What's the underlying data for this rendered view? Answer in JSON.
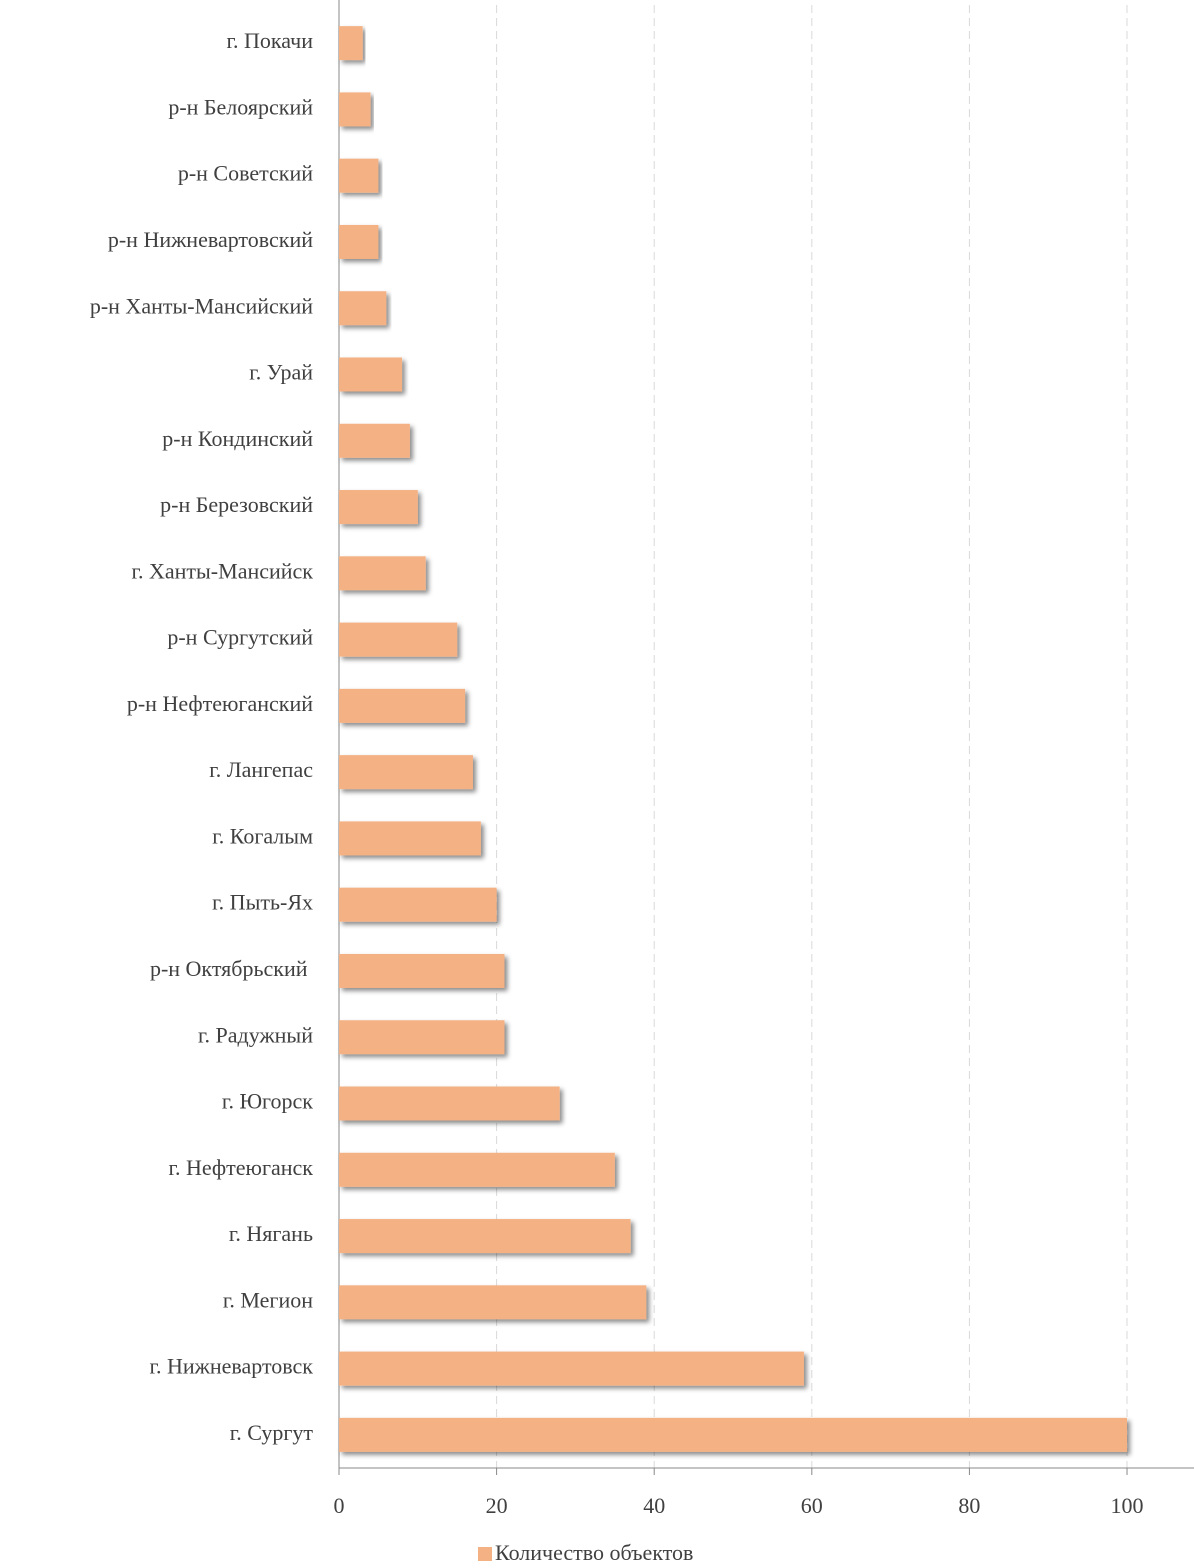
{
  "chart_data": {
    "type": "barh",
    "categories": [
      "г. Покачи",
      "р-н Белоярский",
      "р-н Советский",
      "р-н Нижневартовский",
      "р-н Ханты-Мансийский",
      "г. Урай",
      "р-н Кондинский",
      "р-н Березовский",
      "г. Ханты-Мансийск",
      "р-н Сургутский",
      "р-н Нефтеюганский",
      "г. Лангепас",
      "г. Когалым",
      "г. Пыть-Ях",
      "р-н Октябрьский ",
      "г. Радужный",
      "г. Югорск",
      "г. Нефтеюганск",
      "г. Нягань",
      "г. Мегион",
      "г. Нижневартовск",
      "г. Сургут"
    ],
    "series": [
      {
        "name": "Количество объектов",
        "color": "#f4b183",
        "values": [
          3,
          4,
          5,
          5,
          6,
          8,
          9,
          10,
          11,
          15,
          16,
          17,
          18,
          20,
          21,
          21,
          28,
          35,
          37,
          39,
          59,
          100
        ]
      }
    ],
    "xlim": [
      0,
      108.5
    ],
    "xticks": [
      0,
      20,
      40,
      60,
      80,
      100
    ],
    "grid": true,
    "legend": "bottom"
  }
}
